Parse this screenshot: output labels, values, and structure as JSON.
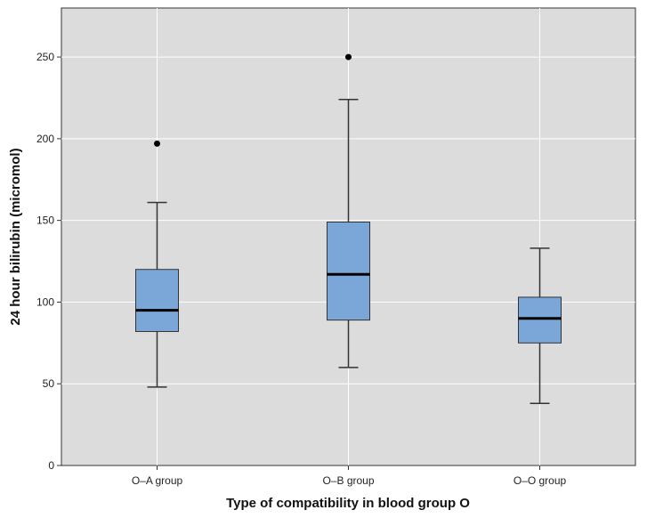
{
  "chart_data": {
    "type": "boxplot",
    "title": "",
    "xlabel": "Type of compatibility in blood group O",
    "ylabel": "24 hour bilirubin (micromol)",
    "ylim": [
      0,
      280
    ],
    "yticks": [
      0,
      50,
      100,
      150,
      200,
      250
    ],
    "categories": [
      "O–A group",
      "O–B group",
      "O–O group"
    ],
    "boxes": [
      {
        "category": "O–A group",
        "whisker_low": 48,
        "q1": 82,
        "median": 95,
        "q3": 120,
        "whisker_high": 161,
        "outliers": [
          197
        ]
      },
      {
        "category": "O–B group",
        "whisker_low": 60,
        "q1": 89,
        "median": 117,
        "q3": 149,
        "whisker_high": 224,
        "outliers": [
          250
        ]
      },
      {
        "category": "O–O group",
        "whisker_low": 38,
        "q1": 75,
        "median": 90,
        "q3": 103,
        "whisker_high": 133,
        "outliers": []
      }
    ],
    "grid": true,
    "colors": {
      "plot_background": "#dcdcdc",
      "box_fill": "#7ba7d8",
      "box_stroke": "#333333",
      "gridline": "#ffffff",
      "median": "#000000",
      "outlier": "#000000"
    }
  }
}
